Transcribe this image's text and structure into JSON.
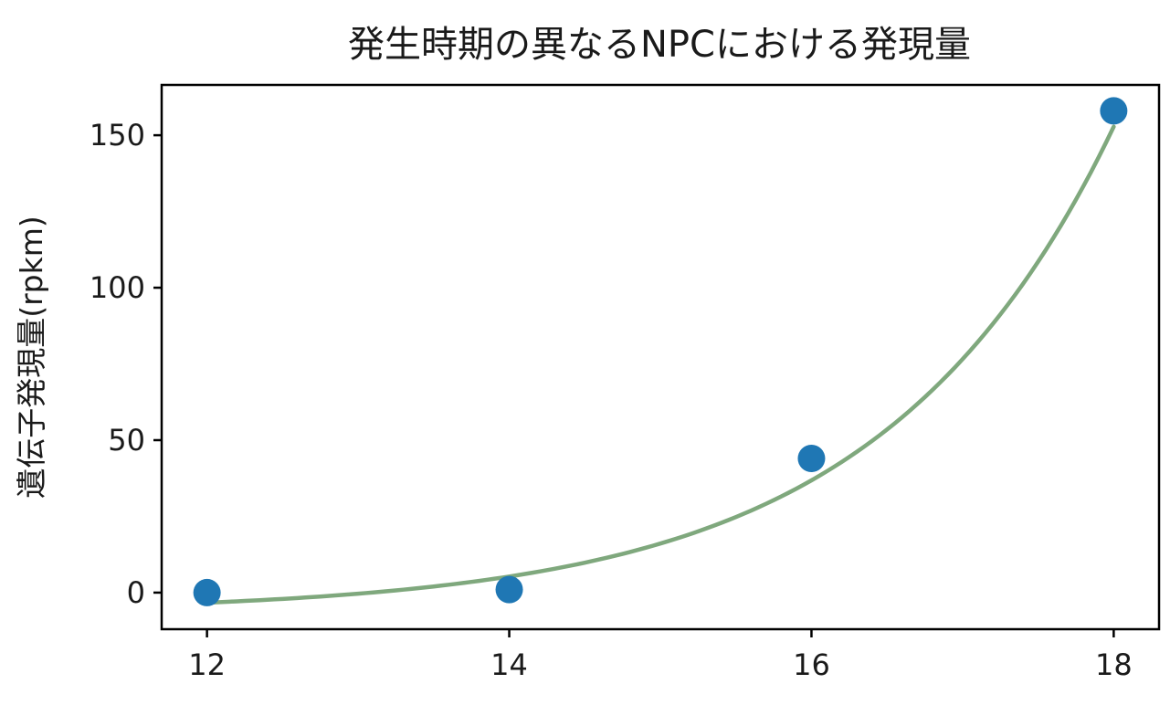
{
  "chart_data": {
    "type": "scatter",
    "title": "発生時期の異なるNPCにおける発現量",
    "xlabel": "",
    "ylabel": "遺伝子発現量(rpkm)",
    "xlim": [
      11.7,
      18.3
    ],
    "ylim": [
      -12,
      166.5
    ],
    "xticks": [
      12,
      14,
      16,
      18
    ],
    "yticks": [
      0,
      50,
      100,
      150
    ],
    "grid": false,
    "legend": "none",
    "series": [
      {
        "kind": "points",
        "color": "#1f77b4",
        "x": [
          12,
          14,
          16,
          18
        ],
        "y": [
          0,
          1,
          44,
          158
        ]
      },
      {
        "kind": "fit-curve",
        "color": "#7fa87d",
        "x_start": 12,
        "x_end": 18,
        "fit": {
          "model": "exponential",
          "a": 3.205,
          "b": 0.651,
          "c": -6.5
        }
      }
    ]
  }
}
